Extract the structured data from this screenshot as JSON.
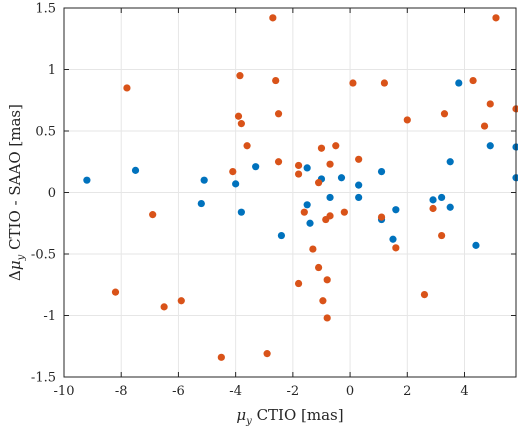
{
  "chart_data": {
    "type": "scatter",
    "xlabel": "μ_y CTIO [mas]",
    "ylabel": "Δμ_y CTIO - SAAO [mas]",
    "xlim": [
      -10,
      5.8
    ],
    "ylim": [
      -1.5,
      1.5
    ],
    "xticks": [
      -10,
      -8,
      -6,
      -4,
      -2,
      0,
      2,
      4
    ],
    "yticks": [
      -1.5,
      -1,
      -0.5,
      0,
      0.5,
      1,
      1.5
    ],
    "xtick_labels": [
      "-10",
      "-8",
      "-6",
      "-4",
      "-2",
      "0",
      "2",
      "4"
    ],
    "ytick_labels": [
      "-1.5",
      "-1",
      "-0.5",
      "0",
      "0.5",
      "1",
      "1.5"
    ],
    "grid": true,
    "series": [
      {
        "color": "#0072BD",
        "points": [
          [
            -9.2,
            0.1
          ],
          [
            -7.5,
            0.18
          ],
          [
            -5.2,
            -0.09
          ],
          [
            -5.1,
            0.1
          ],
          [
            -4.0,
            0.07
          ],
          [
            -3.8,
            -0.16
          ],
          [
            -3.3,
            0.21
          ],
          [
            -2.4,
            -0.35
          ],
          [
            -1.5,
            -0.1
          ],
          [
            -1.4,
            -0.25
          ],
          [
            -1.5,
            0.2
          ],
          [
            -1.0,
            0.11
          ],
          [
            -0.7,
            -0.04
          ],
          [
            -0.3,
            0.12
          ],
          [
            0.3,
            0.06
          ],
          [
            0.3,
            -0.04
          ],
          [
            1.1,
            0.17
          ],
          [
            1.1,
            -0.22
          ],
          [
            1.5,
            -0.38
          ],
          [
            1.6,
            -0.14
          ],
          [
            2.9,
            -0.06
          ],
          [
            3.2,
            -0.04
          ],
          [
            3.5,
            0.25
          ],
          [
            3.5,
            -0.12
          ],
          [
            3.8,
            0.89
          ],
          [
            4.4,
            -0.43
          ],
          [
            4.9,
            0.38
          ],
          [
            5.8,
            0.37
          ],
          [
            5.8,
            0.12
          ]
        ]
      },
      {
        "color": "#D95319",
        "points": [
          [
            -7.8,
            0.85
          ],
          [
            -8.2,
            -0.81
          ],
          [
            -6.9,
            -0.18
          ],
          [
            -6.5,
            -0.93
          ],
          [
            -5.9,
            -0.88
          ],
          [
            -4.5,
            -1.34
          ],
          [
            -4.1,
            0.17
          ],
          [
            -3.9,
            0.62
          ],
          [
            -3.85,
            0.95
          ],
          [
            -3.8,
            0.56
          ],
          [
            -3.6,
            0.38
          ],
          [
            -2.9,
            -1.31
          ],
          [
            -2.7,
            1.42
          ],
          [
            -2.6,
            0.91
          ],
          [
            -2.5,
            0.64
          ],
          [
            -2.5,
            0.25
          ],
          [
            -1.8,
            0.22
          ],
          [
            -1.8,
            0.15
          ],
          [
            -1.8,
            -0.74
          ],
          [
            -1.6,
            -0.16
          ],
          [
            -1.3,
            -0.46
          ],
          [
            -1.1,
            0.08
          ],
          [
            -1.1,
            -0.61
          ],
          [
            -1.0,
            0.36
          ],
          [
            -0.95,
            -0.88
          ],
          [
            -0.85,
            -0.22
          ],
          [
            -0.8,
            -0.71
          ],
          [
            -0.8,
            -1.02
          ],
          [
            -0.7,
            -0.19
          ],
          [
            -0.7,
            0.23
          ],
          [
            -0.5,
            0.38
          ],
          [
            -0.2,
            -0.16
          ],
          [
            0.1,
            0.89
          ],
          [
            0.3,
            0.27
          ],
          [
            1.1,
            -0.2
          ],
          [
            1.2,
            0.89
          ],
          [
            1.6,
            -0.45
          ],
          [
            2.0,
            0.59
          ],
          [
            2.6,
            -0.83
          ],
          [
            2.9,
            -0.13
          ],
          [
            3.2,
            -0.35
          ],
          [
            3.3,
            0.64
          ],
          [
            4.3,
            0.91
          ],
          [
            4.7,
            0.54
          ],
          [
            4.9,
            0.72
          ],
          [
            5.1,
            1.42
          ],
          [
            5.8,
            0.68
          ]
        ]
      }
    ]
  }
}
